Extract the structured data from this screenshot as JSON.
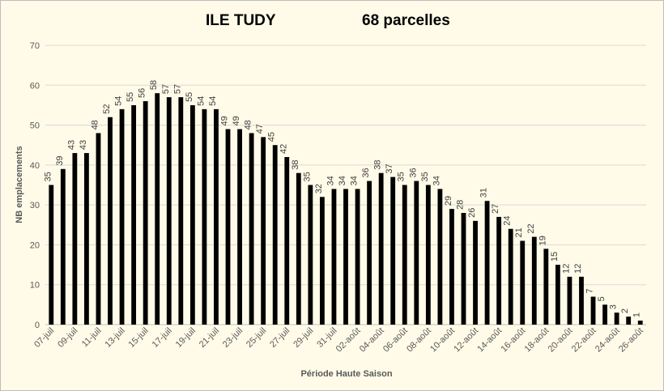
{
  "chart_data": {
    "type": "bar",
    "title": "ILE TUDY",
    "subtitle": "68 parcelles",
    "xlabel": "Période Haute Saison",
    "ylabel": "NB emplacements",
    "ylim": [
      0,
      70
    ],
    "yticks": [
      0,
      10,
      20,
      30,
      40,
      50,
      60,
      70
    ],
    "grid": true,
    "bar_color": "#000000",
    "tick_labels": [
      "07-juil",
      "09-juil",
      "11-juil",
      "13-juil",
      "15-juil",
      "17-juil",
      "19-juil",
      "21-juil",
      "23-juil",
      "25-juil",
      "27-juil",
      "29-juil",
      "31-juil",
      "02-août",
      "04-août",
      "06-août",
      "08-août",
      "10-août",
      "12-août",
      "14-août",
      "16-août",
      "18-août",
      "20-août",
      "22-août",
      "24-août",
      "26-août"
    ],
    "values": [
      35,
      39,
      43,
      43,
      48,
      52,
      54,
      55,
      56,
      58,
      57,
      57,
      55,
      54,
      54,
      49,
      49,
      48,
      47,
      45,
      42,
      38,
      35,
      32,
      34,
      34,
      34,
      36,
      38,
      37,
      35,
      36,
      35,
      34,
      29,
      28,
      26,
      31,
      27,
      24,
      21,
      22,
      19,
      15,
      12,
      12,
      7,
      5,
      3,
      2,
      1
    ]
  }
}
